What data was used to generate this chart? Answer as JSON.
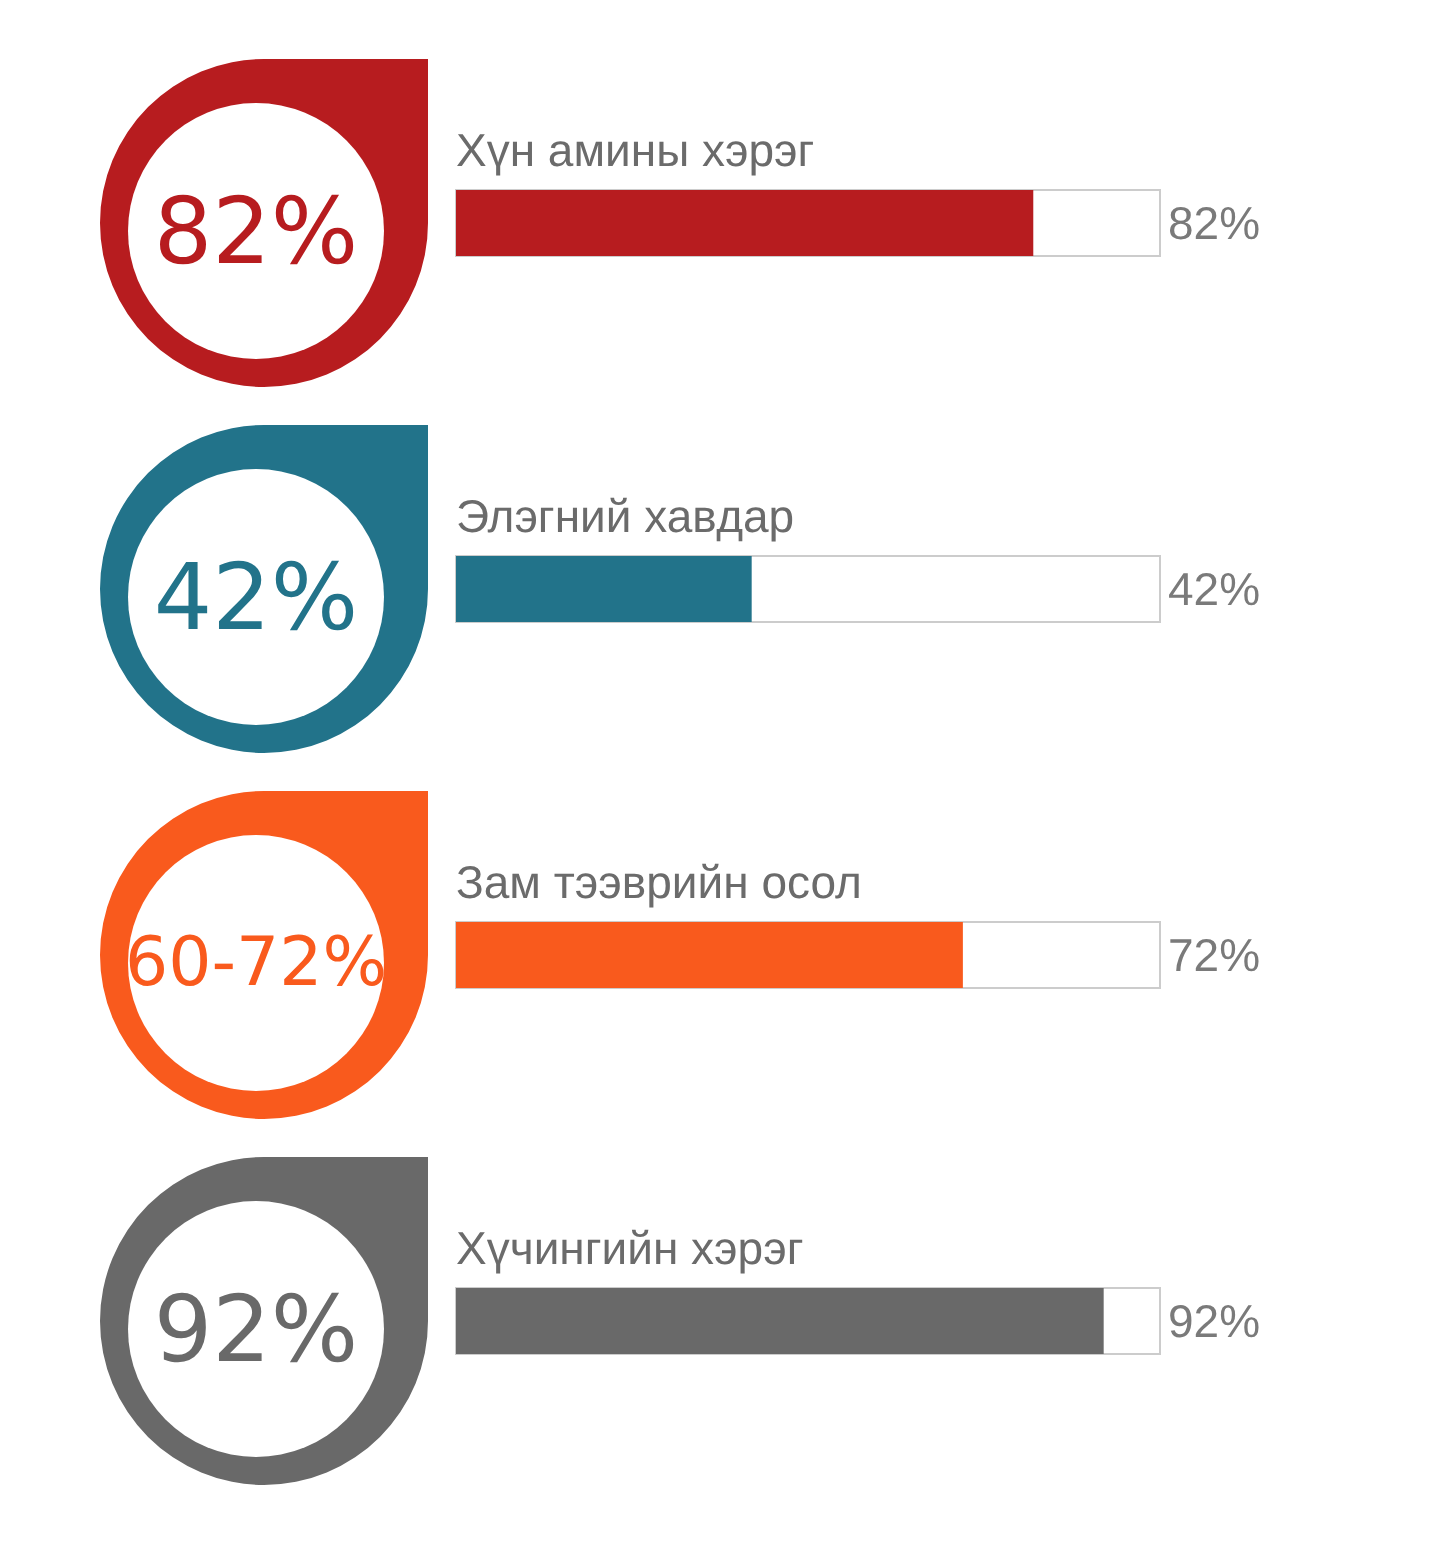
{
  "chart_data": {
    "type": "bar",
    "orientation": "horizontal",
    "categories": [
      "Хүн амины хэрэг",
      "Элэгний хавдар",
      "Зам тээврийн осол",
      "Хүчингийн хэрэг"
    ],
    "values": [
      82,
      42,
      72,
      92
    ],
    "colors": [
      "#b71c1f",
      "#22738a",
      "#f95a1d",
      "#696969"
    ],
    "value_labels": [
      "82%",
      "42%",
      "72%",
      "92%"
    ],
    "xlim": [
      0,
      100
    ],
    "tick_labels": false,
    "annotations": [
      "82%",
      "42%",
      "60-72%",
      "92%"
    ]
  }
}
